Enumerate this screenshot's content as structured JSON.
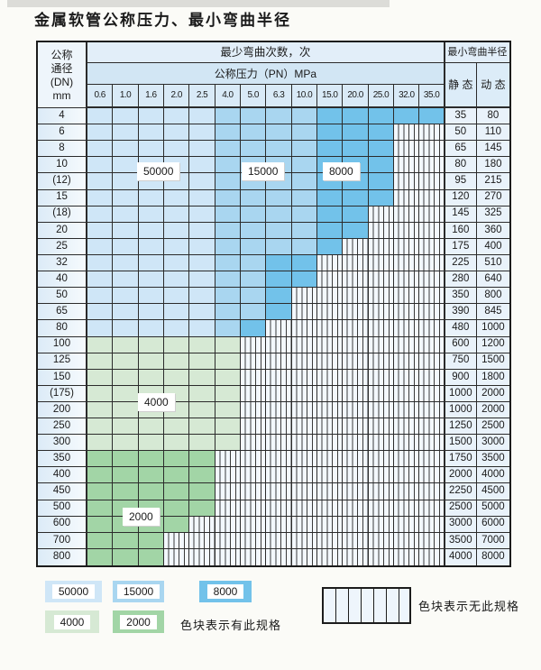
{
  "title": "金属软管公称压力、最小弯曲半径",
  "table": {
    "header": {
      "dn_lines": [
        "公称",
        "通径",
        "(DN)",
        "mm"
      ],
      "cycles_title": "最少弯曲次数，次",
      "pressure_title": "公称压力（PN）MPa",
      "pressures": [
        "0.6",
        "1.0",
        "1.6",
        "2.0",
        "2.5",
        "4.0",
        "5.0",
        "6.3",
        "10.0",
        "15.0",
        "20.0",
        "25.0",
        "32.0",
        "35.0"
      ],
      "radius_title": "最小弯曲半径",
      "static_label": "静 态",
      "dynamic_label": "动 态"
    },
    "rows": [
      {
        "dn": "4",
        "static": "35",
        "dynamic": "80",
        "regions": [
          {
            "cycles": "50000",
            "through": "2.5"
          },
          {
            "cycles": "15000",
            "through": "10.0"
          },
          {
            "cycles": "8000",
            "through": "35.0"
          }
        ]
      },
      {
        "dn": "6",
        "static": "50",
        "dynamic": "110",
        "regions": [
          {
            "cycles": "50000",
            "through": "2.5"
          },
          {
            "cycles": "15000",
            "through": "10.0"
          },
          {
            "cycles": "8000",
            "through": "25.0"
          }
        ]
      },
      {
        "dn": "8",
        "static": "65",
        "dynamic": "145",
        "regions": [
          {
            "cycles": "50000",
            "through": "2.5"
          },
          {
            "cycles": "15000",
            "through": "10.0"
          },
          {
            "cycles": "8000",
            "through": "25.0"
          }
        ]
      },
      {
        "dn": "10",
        "static": "80",
        "dynamic": "180",
        "regions": [
          {
            "cycles": "50000",
            "through": "2.5"
          },
          {
            "cycles": "15000",
            "through": "10.0"
          },
          {
            "cycles": "8000",
            "through": "25.0"
          }
        ]
      },
      {
        "dn": "(12)",
        "static": "95",
        "dynamic": "215",
        "regions": [
          {
            "cycles": "50000",
            "through": "2.5"
          },
          {
            "cycles": "15000",
            "through": "10.0"
          },
          {
            "cycles": "8000",
            "through": "25.0"
          }
        ]
      },
      {
        "dn": "15",
        "static": "120",
        "dynamic": "270",
        "regions": [
          {
            "cycles": "50000",
            "through": "2.5"
          },
          {
            "cycles": "15000",
            "through": "10.0"
          },
          {
            "cycles": "8000",
            "through": "25.0"
          }
        ]
      },
      {
        "dn": "(18)",
        "static": "145",
        "dynamic": "325",
        "regions": [
          {
            "cycles": "50000",
            "through": "2.5"
          },
          {
            "cycles": "15000",
            "through": "10.0"
          },
          {
            "cycles": "8000",
            "through": "20.0"
          }
        ]
      },
      {
        "dn": "20",
        "static": "160",
        "dynamic": "360",
        "regions": [
          {
            "cycles": "50000",
            "through": "2.5"
          },
          {
            "cycles": "15000",
            "through": "10.0"
          },
          {
            "cycles": "8000",
            "through": "20.0"
          }
        ]
      },
      {
        "dn": "25",
        "static": "175",
        "dynamic": "400",
        "regions": [
          {
            "cycles": "50000",
            "through": "2.5"
          },
          {
            "cycles": "15000",
            "through": "10.0"
          },
          {
            "cycles": "8000",
            "through": "15.0"
          }
        ]
      },
      {
        "dn": "32",
        "static": "225",
        "dynamic": "510",
        "regions": [
          {
            "cycles": "50000",
            "through": "2.5"
          },
          {
            "cycles": "15000",
            "through": "5.0"
          },
          {
            "cycles": "8000",
            "through": "10.0"
          }
        ]
      },
      {
        "dn": "40",
        "static": "280",
        "dynamic": "640",
        "regions": [
          {
            "cycles": "50000",
            "through": "2.5"
          },
          {
            "cycles": "15000",
            "through": "5.0"
          },
          {
            "cycles": "8000",
            "through": "10.0"
          }
        ]
      },
      {
        "dn": "50",
        "static": "350",
        "dynamic": "800",
        "regions": [
          {
            "cycles": "50000",
            "through": "2.5"
          },
          {
            "cycles": "15000",
            "through": "5.0"
          },
          {
            "cycles": "8000",
            "through": "6.3"
          }
        ]
      },
      {
        "dn": "65",
        "static": "390",
        "dynamic": "845",
        "regions": [
          {
            "cycles": "50000",
            "through": "2.5"
          },
          {
            "cycles": "15000",
            "through": "5.0"
          },
          {
            "cycles": "8000",
            "through": "6.3"
          }
        ]
      },
      {
        "dn": "80",
        "static": "480",
        "dynamic": "1000",
        "regions": [
          {
            "cycles": "50000",
            "through": "2.5"
          },
          {
            "cycles": "15000",
            "through": "4.0"
          },
          {
            "cycles": "8000",
            "through": "5.0"
          }
        ]
      },
      {
        "dn": "100",
        "static": "600",
        "dynamic": "1200",
        "regions": [
          {
            "cycles": "4000",
            "through": "4.0"
          }
        ]
      },
      {
        "dn": "125",
        "static": "750",
        "dynamic": "1500",
        "regions": [
          {
            "cycles": "4000",
            "through": "4.0"
          }
        ]
      },
      {
        "dn": "150",
        "static": "900",
        "dynamic": "1800",
        "regions": [
          {
            "cycles": "4000",
            "through": "4.0"
          }
        ]
      },
      {
        "dn": "(175)",
        "static": "1000",
        "dynamic": "2000",
        "regions": [
          {
            "cycles": "4000",
            "through": "4.0"
          }
        ]
      },
      {
        "dn": "200",
        "static": "1000",
        "dynamic": "2000",
        "regions": [
          {
            "cycles": "4000",
            "through": "4.0"
          }
        ]
      },
      {
        "dn": "250",
        "static": "1250",
        "dynamic": "2500",
        "regions": [
          {
            "cycles": "4000",
            "through": "4.0"
          }
        ]
      },
      {
        "dn": "300",
        "static": "1500",
        "dynamic": "3000",
        "regions": [
          {
            "cycles": "4000",
            "through": "4.0"
          }
        ]
      },
      {
        "dn": "350",
        "static": "1750",
        "dynamic": "3500",
        "regions": [
          {
            "cycles": "2000",
            "through": "2.5"
          }
        ]
      },
      {
        "dn": "400",
        "static": "2000",
        "dynamic": "4000",
        "regions": [
          {
            "cycles": "2000",
            "through": "2.5"
          }
        ]
      },
      {
        "dn": "450",
        "static": "2250",
        "dynamic": "4500",
        "regions": [
          {
            "cycles": "2000",
            "through": "2.5"
          }
        ]
      },
      {
        "dn": "500",
        "static": "2500",
        "dynamic": "5000",
        "regions": [
          {
            "cycles": "2000",
            "through": "2.5"
          }
        ]
      },
      {
        "dn": "600",
        "static": "3000",
        "dynamic": "6000",
        "regions": [
          {
            "cycles": "2000",
            "through": "2.0"
          }
        ]
      },
      {
        "dn": "700",
        "static": "3500",
        "dynamic": "7000",
        "regions": [
          {
            "cycles": "2000",
            "through": "1.6"
          }
        ]
      },
      {
        "dn": "800",
        "static": "4000",
        "dynamic": "8000",
        "regions": [
          {
            "cycles": "2000",
            "through": "1.6"
          }
        ]
      }
    ]
  },
  "region_colors": {
    "50000": "#cfe6f7",
    "15000": "#a9d6f0",
    "8000": "#72c2ea",
    "4000": "#d6e9d4",
    "2000": "#a2d5a6"
  },
  "floating_labels": {
    "l50000": "50000",
    "l15000": "15000",
    "l8000": "8000",
    "l4000": "4000",
    "l2000": "2000"
  },
  "legend": {
    "chips": [
      {
        "label": "50000",
        "color": "#cfe6f7"
      },
      {
        "label": "15000",
        "color": "#a9d6f0"
      },
      {
        "label": "8000",
        "color": "#72c2ea"
      },
      {
        "label": "4000",
        "color": "#d6e9d4"
      },
      {
        "label": "2000",
        "color": "#a2d5a6"
      }
    ],
    "present_text": "色块表示有此规格",
    "absent_text": "色块表示无此规格"
  }
}
